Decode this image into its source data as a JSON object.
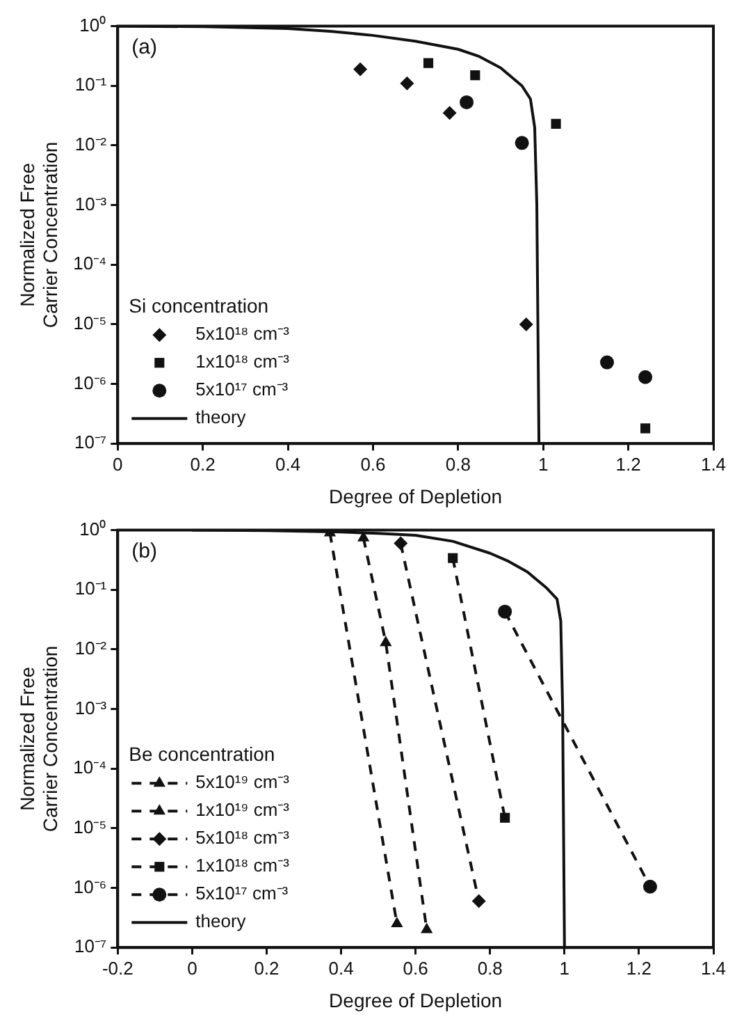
{
  "chart_data": [
    {
      "type": "scatter",
      "xlabel": "Degree of Depletion",
      "ylabel": "Normalized Free\nCarrier Concentration",
      "legend_title": "Si concentration",
      "legend": "left",
      "grid": false,
      "log": "y",
      "annotations": [
        "(a)"
      ],
      "xlim": [
        0,
        1.4
      ],
      "xticks": [
        0,
        0.2,
        0.4,
        0.6,
        0.8,
        1,
        1.2,
        1.4
      ],
      "ylim": [
        1e-07,
        1
      ],
      "yticks": [
        {
          "value": 1,
          "label": "10⁰"
        },
        {
          "value": 0.1,
          "label": "10⁻¹"
        },
        {
          "value": 0.01,
          "label": "10⁻²"
        },
        {
          "value": 0.001,
          "label": "10⁻³"
        },
        {
          "value": 0.0001,
          "label": "10⁻⁴"
        },
        {
          "value": 1e-05,
          "label": "10⁻⁵"
        },
        {
          "value": 1e-06,
          "label": "10⁻⁶"
        },
        {
          "value": 1e-07,
          "label": "10⁻⁷"
        }
      ],
      "series": [
        {
          "name": "5x10¹⁸ cm⁻³",
          "marker": "diamond",
          "color": "#111111",
          "x": [
            0.57,
            0.68,
            0.78,
            0.96
          ],
          "values": [
            0.19,
            0.11,
            0.035,
            1e-05
          ]
        },
        {
          "name": "1x10¹⁸ cm⁻³",
          "marker": "square",
          "color": "#111111",
          "x": [
            0.73,
            0.84,
            1.03,
            1.24
          ],
          "values": [
            0.24,
            0.15,
            0.023,
            1.8e-07
          ]
        },
        {
          "name": "5x10¹⁷ cm⁻³",
          "marker": "circle",
          "color": "#111111",
          "x": [
            0.82,
            0.95,
            1.15,
            1.24
          ],
          "values": [
            0.053,
            0.011,
            2.3e-06,
            1.3e-06
          ]
        },
        {
          "name": "theory",
          "type": "line",
          "marker": "none",
          "line_style": "solid",
          "color": "#111111",
          "x": [
            0,
            0.2,
            0.4,
            0.5,
            0.6,
            0.7,
            0.8,
            0.85,
            0.9,
            0.95,
            0.97,
            0.98,
            0.985,
            0.99
          ],
          "values": [
            1,
            0.98,
            0.91,
            0.82,
            0.7,
            0.56,
            0.41,
            0.31,
            0.2,
            0.1,
            0.06,
            0.02,
            0.001,
            1e-07
          ]
        }
      ]
    },
    {
      "type": "line",
      "xlabel": "Degree of Depletion",
      "ylabel": "Normalized Free\nCarrier Concentration",
      "legend_title": "Be concentration",
      "legend": "left",
      "grid": false,
      "log": "y",
      "annotations": [
        "(b)"
      ],
      "xlim": [
        -0.2,
        1.4
      ],
      "xticks": [
        -0.2,
        0,
        0.2,
        0.4,
        0.6,
        0.8,
        1,
        1.2,
        1.4
      ],
      "ylim": [
        1e-07,
        1
      ],
      "yticks": [
        {
          "value": 1,
          "label": "10⁰"
        },
        {
          "value": 0.1,
          "label": "10⁻¹"
        },
        {
          "value": 0.01,
          "label": "10⁻²"
        },
        {
          "value": 0.001,
          "label": "10⁻³"
        },
        {
          "value": 0.0001,
          "label": "10⁻⁴"
        },
        {
          "value": 1e-05,
          "label": "10⁻⁵"
        },
        {
          "value": 1e-06,
          "label": "10⁻⁶"
        },
        {
          "value": 1e-07,
          "label": "10⁻⁷"
        }
      ],
      "series": [
        {
          "name": "5x10¹⁹ cm⁻³",
          "marker": "triangle",
          "line_style": "dashed",
          "color": "#111111",
          "x": [
            0.37,
            0.55
          ],
          "values": [
            0.9,
            2.5e-07
          ]
        },
        {
          "name": "1x10¹⁹ cm⁻³",
          "marker": "triangle",
          "line_style": "dashed",
          "color": "#111111",
          "x": [
            0.46,
            0.52,
            0.63
          ],
          "values": [
            0.74,
            0.013,
            2e-07
          ]
        },
        {
          "name": "5x10¹⁸ cm⁻³",
          "marker": "diamond",
          "line_style": "dashed",
          "color": "#111111",
          "x": [
            0.56,
            0.77
          ],
          "values": [
            0.6,
            6e-07
          ]
        },
        {
          "name": "1x10¹⁸ cm⁻³",
          "marker": "square",
          "line_style": "dashed",
          "color": "#111111",
          "x": [
            0.7,
            0.84
          ],
          "values": [
            0.34,
            1.5e-05
          ]
        },
        {
          "name": "5x10¹⁷ cm⁻³",
          "marker": "circle",
          "line_style": "dashed",
          "color": "#111111",
          "x": [
            0.84,
            1.23
          ],
          "values": [
            0.043,
            1.05e-06
          ]
        },
        {
          "name": "theory",
          "marker": "none",
          "line_style": "solid",
          "color": "#111111",
          "x": [
            0,
            0.2,
            0.4,
            0.5,
            0.6,
            0.7,
            0.8,
            0.85,
            0.9,
            0.95,
            0.98,
            0.99,
            0.995,
            1
          ],
          "values": [
            1,
            0.98,
            0.93,
            0.88,
            0.82,
            0.65,
            0.41,
            0.3,
            0.2,
            0.11,
            0.07,
            0.03,
            0.001,
            1e-07
          ]
        }
      ]
    }
  ]
}
